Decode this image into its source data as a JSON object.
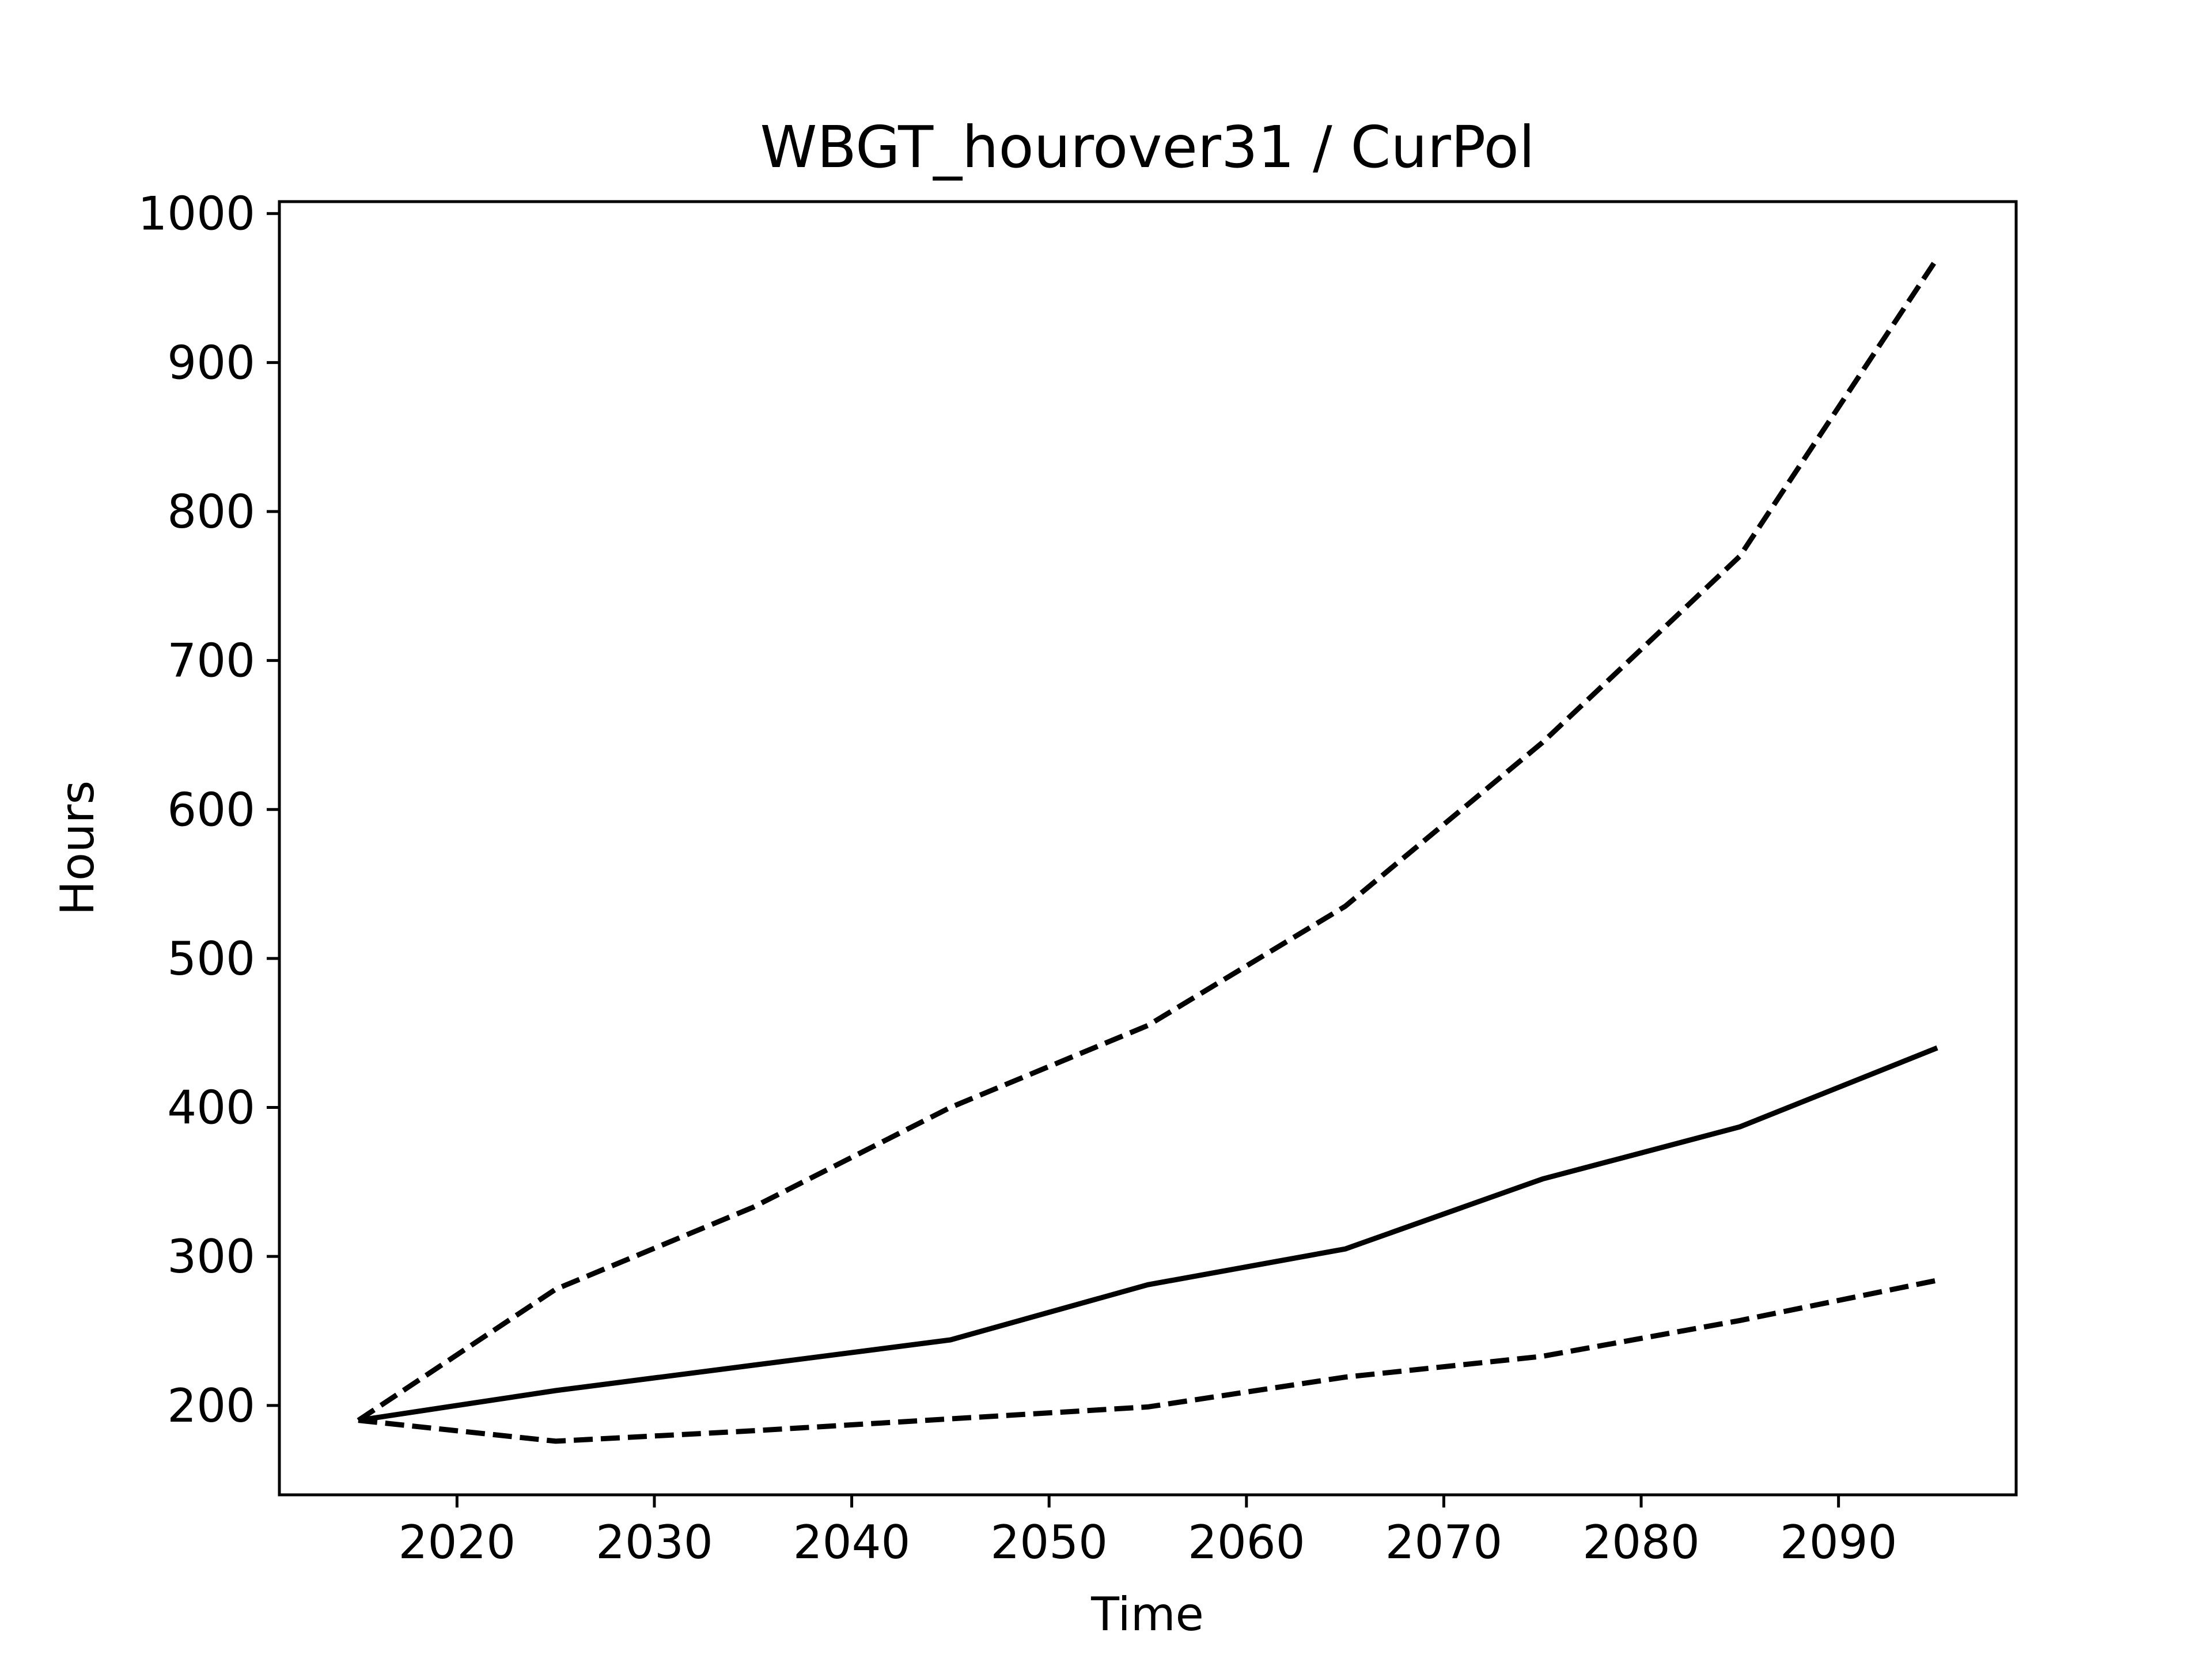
{
  "chart_data": {
    "type": "line",
    "title": "WBGT_hourover31 / CurPol",
    "xlabel": "Time",
    "ylabel": "Hours",
    "x": [
      2015,
      2025,
      2035,
      2045,
      2055,
      2065,
      2075,
      2085,
      2095
    ],
    "xlim": [
      2011,
      2099
    ],
    "ylim": [
      140,
      1008
    ],
    "xticks": [
      "2020",
      "2030",
      "2040",
      "2050",
      "2060",
      "2070",
      "2080",
      "2090"
    ],
    "yticks": [
      "200",
      "300",
      "400",
      "500",
      "600",
      "700",
      "800",
      "900",
      "1000"
    ],
    "grid": false,
    "legend": "none",
    "series": [
      {
        "style": "solid",
        "color": "#000000",
        "values": [
          190,
          210,
          227,
          244,
          281,
          305,
          352,
          387,
          440
        ]
      },
      {
        "style": "dashed",
        "color": "#000000",
        "values": [
          190,
          278,
          333,
          400,
          455,
          535,
          645,
          770,
          970
        ]
      },
      {
        "style": "dashed",
        "color": "#000000",
        "values": [
          190,
          176,
          183,
          191,
          199,
          219,
          233,
          257,
          284
        ]
      }
    ]
  }
}
